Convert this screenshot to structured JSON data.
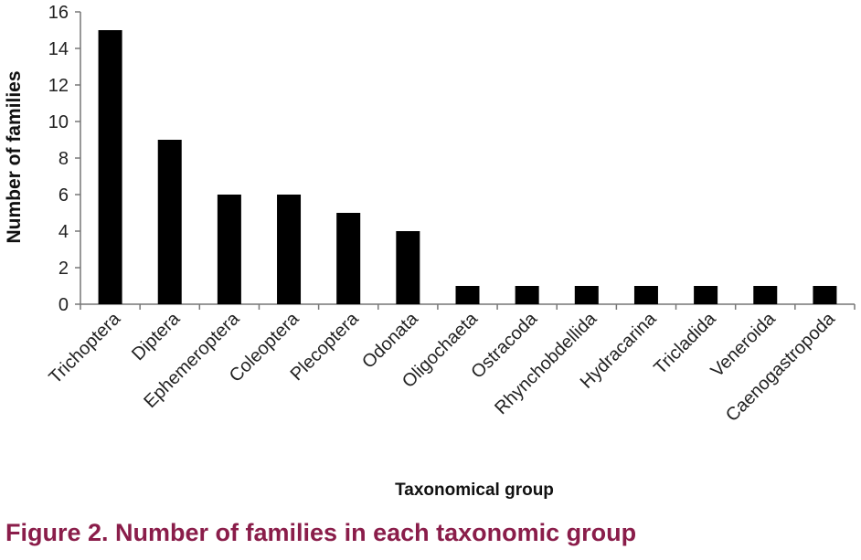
{
  "chart_data": {
    "type": "bar",
    "categories": [
      "Trichoptera",
      "Diptera",
      "Ephemeroptera",
      "Coleoptera",
      "Plecoptera",
      "Odonata",
      "Oligochaeta",
      "Ostracoda",
      "Rhynchobdellida",
      "Hydracarina",
      "Tricladida",
      "Veneroida",
      "Caenogastropoda"
    ],
    "values": [
      15,
      9,
      6,
      6,
      5,
      4,
      1,
      1,
      1,
      1,
      1,
      1,
      1
    ],
    "xlabel": "Taxonomical group",
    "ylabel": "Number of families",
    "ylim": [
      0,
      16
    ],
    "yticks": [
      0,
      2,
      4,
      6,
      8,
      10,
      12,
      14,
      16
    ],
    "grid": false,
    "bar_color": "#000000"
  },
  "caption": "Figure 2. Number of families in each taxonomic group"
}
